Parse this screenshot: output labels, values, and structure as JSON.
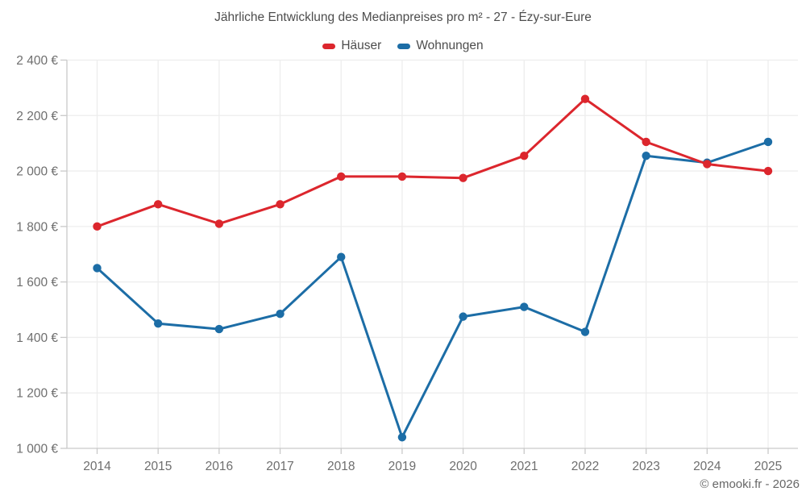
{
  "header": {
    "title": "Jährliche Entwicklung des Medianpreises pro m² - 27 - Ézy-sur-Eure"
  },
  "footer": {
    "copyright": "© emooki.fr - 2026"
  },
  "colors": {
    "houses_red": "#dc262d",
    "apartments_blue": "#1c6da6",
    "grid_line": "#ededed",
    "axis_line": "#c9c9c9",
    "tick_text": "#6e6e6e",
    "title_text": "#4d4d4d"
  },
  "chart_data": {
    "type": "line",
    "title": "Jährliche Entwicklung des Medianpreises pro m² - 27 - Ézy-sur-Eure",
    "categories": [
      "2014",
      "2015",
      "2016",
      "2017",
      "2018",
      "2019",
      "2020",
      "2021",
      "2022",
      "2023",
      "2024",
      "2025"
    ],
    "series": [
      {
        "name": "Häuser",
        "color": "#dc262d",
        "values": [
          1800,
          1880,
          1810,
          1880,
          1980,
          1980,
          1975,
          2055,
          2260,
          2105,
          2025,
          2000
        ]
      },
      {
        "name": "Wohnungen",
        "color": "#1c6da6",
        "values": [
          1650,
          1450,
          1430,
          1485,
          1690,
          1040,
          1475,
          1510,
          1420,
          2055,
          2030,
          2105
        ]
      }
    ],
    "xlabel": "",
    "ylabel": "",
    "ylim": [
      1000,
      2400
    ],
    "ytick_step": 200,
    "ytick_labels": [
      "1 000 €",
      "1 200 €",
      "1 400 €",
      "1 600 €",
      "1 800 €",
      "2 000 €",
      "2 200 €",
      "2 400 €"
    ],
    "grid": true,
    "legend_position": "top",
    "unit_suffix": " €"
  }
}
